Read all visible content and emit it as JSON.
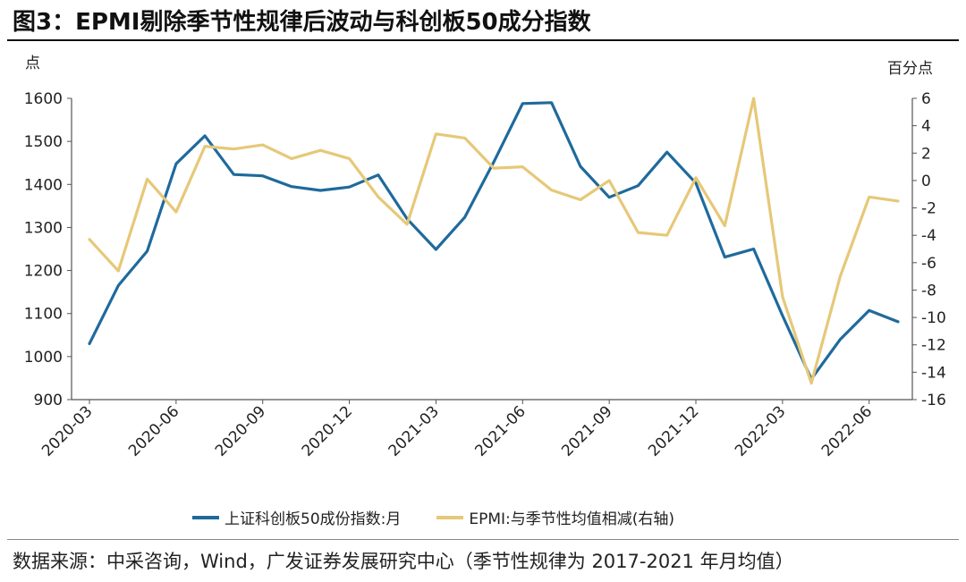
{
  "figure": {
    "title": "图3：EPMI剔除季节性规律后波动与科创板50成分指数",
    "unit_left": "点",
    "unit_right": "百分点",
    "source": "数据来源：中采咨询，Wind，广发证券发展研究中心（季节性规律为 2017-2021 年月均值）"
  },
  "colors": {
    "star50": "#1f6a9c",
    "epmi": "#e6c878",
    "axis": "#555555"
  },
  "chart_data": {
    "type": "line",
    "x": [
      "2020-03",
      "2020-04",
      "2020-05",
      "2020-06",
      "2020-07",
      "2020-08",
      "2020-09",
      "2020-10",
      "2020-11",
      "2020-12",
      "2021-01",
      "2021-02",
      "2021-03",
      "2021-04",
      "2021-05",
      "2021-06",
      "2021-07",
      "2021-08",
      "2021-09",
      "2021-10",
      "2021-11",
      "2021-12",
      "2022-01",
      "2022-02",
      "2022-03",
      "2022-04",
      "2022-05",
      "2022-06",
      "2022-07"
    ],
    "x_tick_labels": [
      "2020-03",
      "2020-06",
      "2020-09",
      "2020-12",
      "2021-03",
      "2021-06",
      "2021-09",
      "2021-12",
      "2022-03",
      "2022-06"
    ],
    "series": [
      {
        "name": "上证科创板50成份指数:月",
        "axis": "left",
        "color": "#1f6a9c",
        "values": [
          1030,
          1165,
          1245,
          1448,
          1513,
          1423,
          1420,
          1395,
          1386,
          1394,
          1422,
          1320,
          1249,
          1324,
          1452,
          1588,
          1590,
          1442,
          1370,
          1397,
          1475,
          1403,
          1231,
          1250,
          1095,
          948,
          1040,
          1107,
          1081
        ]
      },
      {
        "name": "EPMI:与季节性均值相减(右轴)",
        "axis": "right",
        "color": "#e6c878",
        "values": [
          -4.3,
          -6.6,
          0.1,
          -2.3,
          2.5,
          2.3,
          2.6,
          1.6,
          2.2,
          1.6,
          -1.2,
          -3.2,
          3.4,
          3.1,
          0.9,
          1.0,
          -0.7,
          -1.4,
          0.0,
          -3.8,
          -4.0,
          0.2,
          -3.3,
          6.0,
          -8.5,
          -14.8,
          -7.0,
          -1.2,
          -1.5
        ]
      }
    ],
    "y_left": {
      "min": 900,
      "max": 1600,
      "ticks": [
        900,
        1000,
        1100,
        1200,
        1300,
        1400,
        1500,
        1600
      ],
      "label": "点"
    },
    "y_right": {
      "min": -16,
      "max": 6,
      "ticks": [
        6,
        4,
        2,
        0,
        -2,
        -4,
        -6,
        -8,
        -10,
        -12,
        -14,
        -16
      ],
      "label": "百分点"
    },
    "grid": false,
    "legend_position": "bottom"
  }
}
